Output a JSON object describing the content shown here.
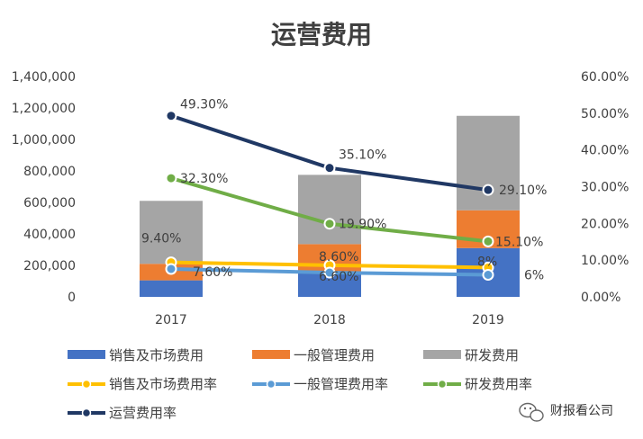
{
  "chart_data": {
    "type": "bar",
    "title": "运营费用",
    "categories": [
      "2017",
      "2018",
      "2019"
    ],
    "ylim": [
      0,
      1400000
    ],
    "y_ticks": [
      "1,400,000",
      "1,200,000",
      "1,000,000",
      "800,000",
      "600,000",
      "400,000",
      "200,000",
      "0"
    ],
    "y2lim": [
      0,
      0.6
    ],
    "y2_ticks": [
      "60.00%",
      "50.00%",
      "40.00%",
      "30.00%",
      "20.00%",
      "10.00%",
      "0.00%"
    ],
    "stacked_series": [
      {
        "name": "销售及市场费用",
        "color": "#4472c4",
        "values": [
          105000,
          150000,
          310000
        ]
      },
      {
        "name": "一般管理费用",
        "color": "#ed7d31",
        "values": [
          105000,
          185000,
          240000
        ]
      },
      {
        "name": "研发费用",
        "color": "#a5a5a5",
        "values": [
          400000,
          440000,
          600000
        ]
      }
    ],
    "line_series": [
      {
        "name": "销售及市场费用率",
        "color": "#ffc000",
        "values": [
          0.094,
          0.086,
          0.08
        ],
        "labels": [
          "9.40%",
          "8.60%",
          "8%"
        ]
      },
      {
        "name": "一般管理费用率",
        "color": "#5b9bd5",
        "values": [
          0.076,
          0.066,
          0.06
        ],
        "labels": [
          "7.60%",
          "6.60%",
          "6%"
        ]
      },
      {
        "name": "研发费用率",
        "color": "#70ad47",
        "values": [
          0.323,
          0.199,
          0.151
        ],
        "labels": [
          "32.30%",
          "19.90%",
          "15.10%"
        ]
      },
      {
        "name": "运营费用率",
        "color": "#203864",
        "values": [
          0.493,
          0.351,
          0.291
        ],
        "labels": [
          "49.30%",
          "35.10%",
          "29.10%"
        ]
      }
    ],
    "grid": false,
    "legend_position": "bottom"
  },
  "watermark": "财报看公司"
}
